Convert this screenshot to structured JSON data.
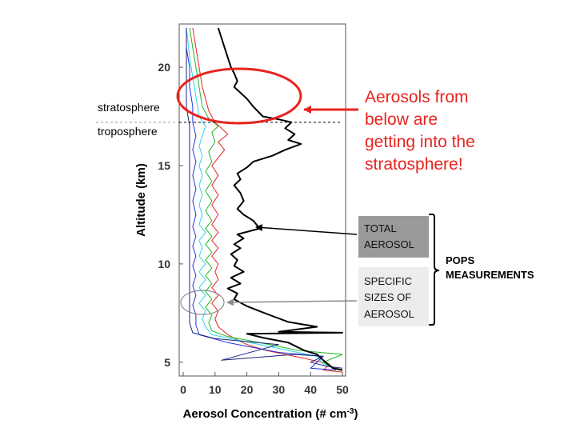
{
  "chart_data": {
    "type": "line",
    "title": "",
    "xlabel": "Aerosol Concentration (# cm",
    "xlabel_sup": "-3",
    "xlabel_end": ")",
    "ylabel": "Altitude (km)",
    "xlim": [
      0,
      50
    ],
    "ylim": [
      4.3,
      22.2
    ],
    "x_ticks": [
      0,
      10,
      20,
      30,
      40,
      50
    ],
    "y_ticks": [
      5,
      10,
      15,
      20
    ],
    "tropopause_km": 17.2,
    "series": [
      {
        "color": "#000000",
        "points": [
          [
            50,
            4.6
          ],
          [
            47,
            4.7
          ],
          [
            44,
            5.1
          ],
          [
            42,
            5.4
          ],
          [
            38,
            5.6
          ],
          [
            33,
            6.0
          ],
          [
            25,
            6.25
          ],
          [
            20,
            6.45
          ],
          [
            50,
            6.5
          ],
          [
            30,
            6.55
          ],
          [
            42,
            6.8
          ],
          [
            33,
            7.05
          ],
          [
            28,
            7.35
          ],
          [
            24,
            7.6
          ],
          [
            20,
            7.85
          ],
          [
            16,
            8.2
          ],
          [
            17,
            8.5
          ],
          [
            14,
            8.75
          ],
          [
            18,
            9.0
          ],
          [
            15,
            9.3
          ],
          [
            19,
            9.6
          ],
          [
            16,
            9.9
          ],
          [
            17,
            10.2
          ],
          [
            15,
            10.5
          ],
          [
            18,
            10.8
          ],
          [
            16,
            11.0
          ],
          [
            19,
            11.3
          ],
          [
            17,
            11.5
          ],
          [
            24,
            11.8
          ],
          [
            22,
            12.2
          ],
          [
            19,
            12.5
          ],
          [
            17,
            12.8
          ],
          [
            19,
            13.2
          ],
          [
            18,
            13.6
          ],
          [
            16,
            14.0
          ],
          [
            18,
            14.3
          ],
          [
            17,
            14.6
          ],
          [
            20,
            14.9
          ],
          [
            22,
            15.2
          ],
          [
            28,
            15.5
          ],
          [
            32,
            15.8
          ],
          [
            37,
            16.1
          ],
          [
            33,
            16.3
          ],
          [
            35,
            16.6
          ],
          [
            32,
            16.9
          ],
          [
            34,
            17.2
          ],
          [
            30,
            17.35
          ],
          [
            25,
            17.5
          ],
          [
            22,
            18.0
          ],
          [
            20,
            18.4
          ],
          [
            18,
            18.7
          ],
          [
            16,
            19.0
          ],
          [
            17,
            19.3
          ],
          [
            16,
            19.7
          ],
          [
            15,
            20.0
          ],
          [
            14,
            20.5
          ],
          [
            13,
            21.0
          ],
          [
            12,
            21.5
          ],
          [
            11,
            22.0
          ]
        ]
      },
      {
        "color": "#e8231e",
        "points": [
          [
            50,
            4.5
          ],
          [
            44,
            4.6
          ],
          [
            46,
            4.9
          ],
          [
            38,
            5.2
          ],
          [
            26,
            5.6
          ],
          [
            20,
            5.9
          ],
          [
            14,
            6.4
          ],
          [
            11,
            6.8
          ],
          [
            10,
            7.2
          ],
          [
            11,
            7.6
          ],
          [
            9,
            8.0
          ],
          [
            11,
            8.4
          ],
          [
            9,
            8.8
          ],
          [
            11,
            9.2
          ],
          [
            10,
            9.6
          ],
          [
            11,
            10.0
          ],
          [
            9,
            10.4
          ],
          [
            11,
            10.8
          ],
          [
            9,
            11.2
          ],
          [
            11,
            11.6
          ],
          [
            9,
            12.0
          ],
          [
            11,
            12.5
          ],
          [
            9,
            13.0
          ],
          [
            11,
            13.5
          ],
          [
            9,
            14.0
          ],
          [
            11,
            14.5
          ],
          [
            9,
            15.0
          ],
          [
            11,
            15.4
          ],
          [
            13,
            15.8
          ],
          [
            11,
            16.2
          ],
          [
            14,
            16.6
          ],
          [
            12,
            16.9
          ],
          [
            10,
            17.2
          ],
          [
            8,
            17.8
          ],
          [
            7,
            18.4
          ],
          [
            6,
            19.0
          ],
          [
            5,
            20.0
          ],
          [
            4,
            21.0
          ],
          [
            3,
            22.0
          ]
        ]
      },
      {
        "color": "#22b522",
        "points": [
          [
            50,
            4.6
          ],
          [
            46,
            4.8
          ],
          [
            44,
            5.0
          ],
          [
            50,
            5.4
          ],
          [
            36,
            5.6
          ],
          [
            24,
            6.0
          ],
          [
            14,
            6.3
          ],
          [
            9,
            6.6
          ],
          [
            8,
            7.0
          ],
          [
            9,
            7.4
          ],
          [
            7,
            7.8
          ],
          [
            9,
            8.2
          ],
          [
            7,
            8.6
          ],
          [
            9,
            9.0
          ],
          [
            7,
            9.4
          ],
          [
            9,
            9.8
          ],
          [
            7,
            10.2
          ],
          [
            9,
            10.6
          ],
          [
            7,
            11.0
          ],
          [
            9,
            11.4
          ],
          [
            7,
            11.8
          ],
          [
            9,
            12.2
          ],
          [
            7,
            12.7
          ],
          [
            9,
            13.2
          ],
          [
            7,
            13.7
          ],
          [
            9,
            14.2
          ],
          [
            7,
            14.7
          ],
          [
            9,
            15.2
          ],
          [
            8,
            15.7
          ],
          [
            10,
            16.2
          ],
          [
            9,
            16.7
          ],
          [
            11,
            17.0
          ],
          [
            8,
            17.4
          ],
          [
            6,
            18.0
          ],
          [
            5,
            19.0
          ],
          [
            4,
            20.0
          ],
          [
            3,
            21.0
          ],
          [
            2,
            22.0
          ]
        ]
      },
      {
        "color": "#2ad6e8",
        "points": [
          [
            48,
            4.7
          ],
          [
            44,
            4.9
          ],
          [
            42,
            5.3
          ],
          [
            30,
            5.7
          ],
          [
            18,
            6.1
          ],
          [
            9,
            6.4
          ],
          [
            7,
            6.8
          ],
          [
            6,
            7.2
          ],
          [
            7,
            7.6
          ],
          [
            5,
            8.0
          ],
          [
            7,
            8.4
          ],
          [
            5,
            8.8
          ],
          [
            7,
            9.2
          ],
          [
            5,
            9.6
          ],
          [
            7,
            10.0
          ],
          [
            5,
            10.4
          ],
          [
            6,
            10.8
          ],
          [
            5,
            11.2
          ],
          [
            7,
            11.6
          ],
          [
            5,
            12.0
          ],
          [
            6,
            12.5
          ],
          [
            5,
            13.0
          ],
          [
            6,
            13.5
          ],
          [
            5,
            14.0
          ],
          [
            6,
            14.5
          ],
          [
            5,
            15.0
          ],
          [
            6,
            15.5
          ],
          [
            5,
            16.0
          ],
          [
            6,
            16.5
          ],
          [
            7,
            17.0
          ],
          [
            5,
            17.5
          ],
          [
            4,
            18.5
          ],
          [
            3,
            19.5
          ],
          [
            2,
            20.5
          ],
          [
            1,
            22.0
          ]
        ]
      },
      {
        "color": "#2233dd",
        "points": [
          [
            48,
            4.6
          ],
          [
            40,
            4.7
          ],
          [
            44,
            5.3
          ],
          [
            30,
            5.5
          ],
          [
            14,
            6.0
          ],
          [
            5,
            6.4
          ],
          [
            4,
            6.9
          ],
          [
            4,
            7.4
          ],
          [
            3,
            7.9
          ],
          [
            4,
            8.4
          ],
          [
            3,
            8.9
          ],
          [
            4,
            9.4
          ],
          [
            3,
            9.9
          ],
          [
            4,
            10.4
          ],
          [
            3,
            10.9
          ],
          [
            4,
            11.4
          ],
          [
            3,
            11.9
          ],
          [
            4,
            12.5
          ],
          [
            3,
            13.2
          ],
          [
            4,
            13.8
          ],
          [
            3,
            14.5
          ],
          [
            4,
            15.2
          ],
          [
            3,
            15.8
          ],
          [
            4,
            16.5
          ],
          [
            3,
            17.2
          ],
          [
            3,
            18.0
          ],
          [
            2,
            19.0
          ],
          [
            2,
            20.0
          ],
          [
            1,
            21.0
          ],
          [
            1,
            22.0
          ]
        ]
      },
      {
        "color": "#1a237e",
        "points": [
          [
            50,
            4.7
          ],
          [
            45,
            4.8
          ],
          [
            40,
            5.0
          ],
          [
            44,
            5.3
          ],
          [
            35,
            5.4
          ],
          [
            12,
            5.1
          ],
          [
            30,
            5.9
          ],
          [
            10,
            6.2
          ],
          [
            3,
            6.5
          ],
          [
            2,
            7.0
          ],
          [
            2,
            8.0
          ],
          [
            2,
            9.0
          ],
          [
            2,
            10.0
          ],
          [
            2,
            11.0
          ],
          [
            2,
            12.0
          ],
          [
            2,
            13.0
          ],
          [
            2,
            14.0
          ],
          [
            2,
            15.0
          ],
          [
            2,
            16.0
          ],
          [
            2,
            17.0
          ],
          [
            1,
            18.0
          ],
          [
            1,
            19.0
          ],
          [
            1,
            20.0
          ],
          [
            1,
            21.0
          ],
          [
            1,
            22.0
          ]
        ]
      }
    ],
    "annotations": {
      "stratosphere": "stratosphere",
      "troposphere": "troposphere",
      "callout_lines": [
        "Aerosols from",
        "below are",
        "getting into the",
        "stratosphere!"
      ],
      "total_lines": [
        "TOTAL",
        "AEROSOL"
      ],
      "specific_lines": [
        "SPECIFIC",
        "SIZES OF",
        "AEROSOL"
      ],
      "pops_lines": [
        "POPS",
        "MEASUREMENTS"
      ]
    },
    "colors": {
      "callout": "#e8231e",
      "total_box": "#9a9a9a",
      "specific_box": "#ececec",
      "pointer_gray": "#8c8c8c"
    }
  }
}
